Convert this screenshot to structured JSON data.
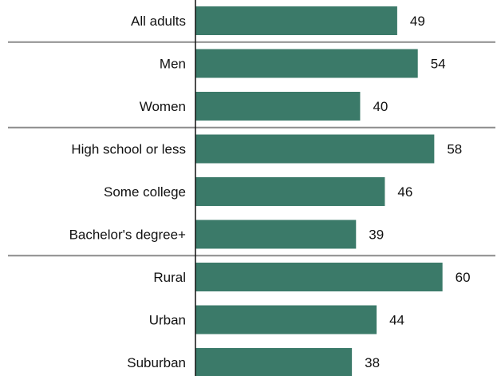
{
  "chart_data": {
    "type": "bar",
    "orientation": "horizontal",
    "categories": [
      "All adults",
      "Men",
      "Women",
      "High school or less",
      "Some college",
      "Bachelor's degree+",
      "Rural",
      "Urban",
      "Suburban"
    ],
    "values": [
      49,
      54,
      40,
      58,
      46,
      39,
      60,
      44,
      38
    ],
    "value_labels": [
      "49",
      "54",
      "40",
      "58",
      "46",
      "39",
      "60",
      "44",
      "38"
    ],
    "group_breaks_after": [
      0,
      2,
      5
    ],
    "xlim": [
      0,
      62
    ],
    "title": "",
    "xlabel": "",
    "ylabel": "",
    "grid": false,
    "bar_color": "#3b7a69",
    "separator_color": "#8c8c8c"
  }
}
